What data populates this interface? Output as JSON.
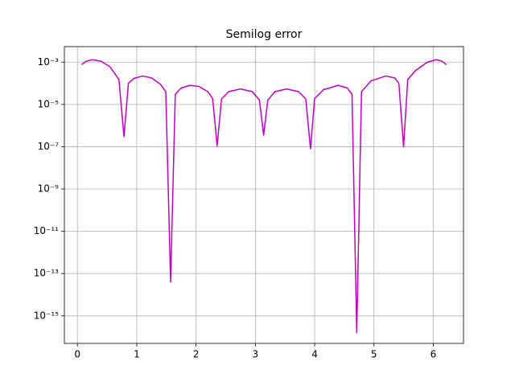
{
  "chart_data": {
    "type": "line",
    "title": "Semilog error",
    "x": [
      0.07,
      0.15,
      0.25,
      0.4,
      0.55,
      0.7,
      0.785,
      0.86,
      0.95,
      1.1,
      1.25,
      1.4,
      1.49,
      1.571,
      1.65,
      1.75,
      1.9,
      2.05,
      2.2,
      2.28,
      2.356,
      2.43,
      2.55,
      2.75,
      2.95,
      3.07,
      3.14,
      3.21,
      3.33,
      3.53,
      3.73,
      3.85,
      3.93,
      4.0,
      4.15,
      4.4,
      4.55,
      4.63,
      4.71,
      4.79,
      4.95,
      5.2,
      5.35,
      5.42,
      5.5,
      5.57,
      5.7,
      5.9,
      6.05,
      6.15,
      6.22
    ],
    "values": [
      0.00076,
      0.0011,
      0.0013,
      0.0011,
      0.0006,
      0.00015,
      3e-07,
      0.0001,
      0.00017,
      0.00022,
      0.00018,
      9e-05,
      4e-05,
      4e-14,
      3e-05,
      6e-05,
      8e-05,
      7e-05,
      4e-05,
      1.9e-05,
      1.1e-07,
      1.8e-05,
      4e-05,
      5.4e-05,
      4e-05,
      1.6e-05,
      3.5e-07,
      1.6e-05,
      4e-05,
      5.4e-05,
      4e-05,
      1.8e-05,
      8e-08,
      1.9e-05,
      5e-05,
      8e-05,
      6e-05,
      3e-05,
      1.6e-16,
      4e-05,
      0.00013,
      0.00022,
      0.00018,
      0.0001,
      1e-07,
      0.00015,
      0.0004,
      0.001,
      0.0013,
      0.0011,
      0.00076
    ],
    "color": "#bf00bf",
    "xlim": [
      -0.22,
      6.51
    ],
    "xticks": [
      0,
      1,
      2,
      3,
      4,
      5,
      6
    ],
    "ylim": [
      5e-17,
      0.0054
    ],
    "yscale": "log",
    "yticks": [
      {
        "value": 1e-15,
        "label": "10⁻¹⁵"
      },
      {
        "value": 1e-13,
        "label": "10⁻¹³"
      },
      {
        "value": 1e-11,
        "label": "10⁻¹¹"
      },
      {
        "value": 1e-09,
        "label": "10⁻⁹"
      },
      {
        "value": 1e-07,
        "label": "10⁻⁷"
      },
      {
        "value": 1e-05,
        "label": "10⁻⁵"
      },
      {
        "value": 0.001,
        "label": "10⁻³"
      }
    ],
    "grid": true
  }
}
